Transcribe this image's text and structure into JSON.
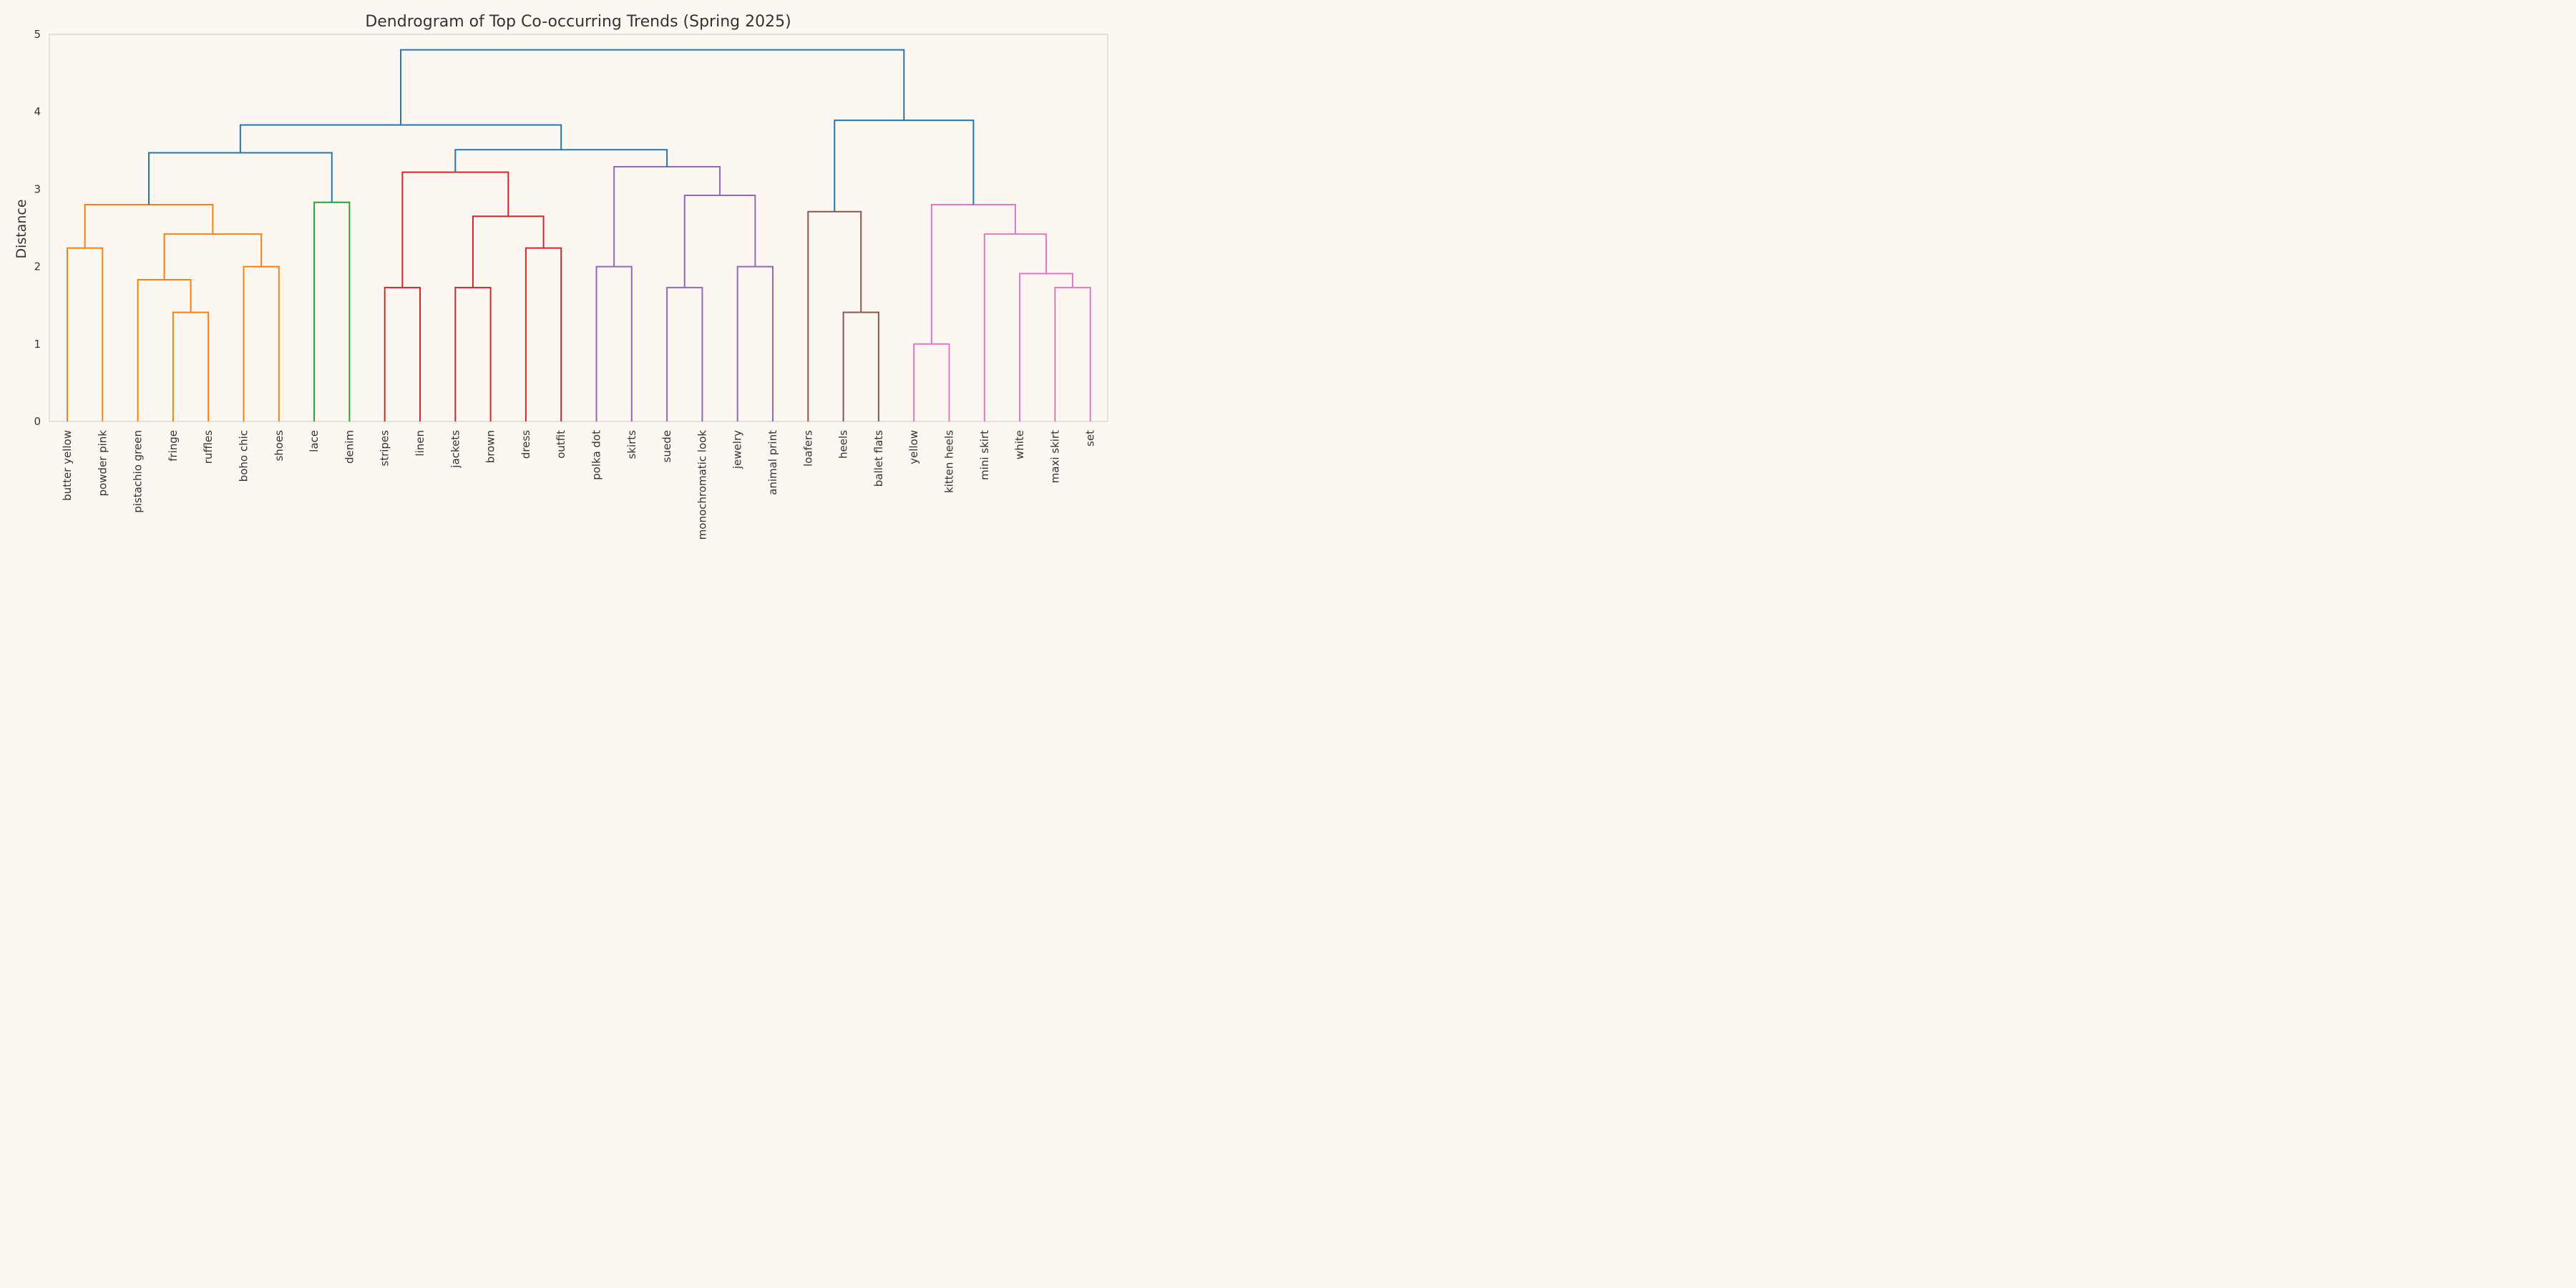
{
  "chart_data": {
    "type": "dendrogram",
    "title": "Dendrogram of Top Co-occurring Trends (Spring 2025)",
    "xlabel": "",
    "ylabel": "Distance",
    "ylim": [
      0,
      5
    ],
    "y_ticks": [
      0,
      1,
      2,
      3,
      4,
      5
    ],
    "grid": false,
    "leaves": [
      "butter yellow",
      "powder pink",
      "pistachio green",
      "fringe",
      "ruffles",
      "boho chic",
      "shoes",
      "lace",
      "denim",
      "stripes",
      "linen",
      "jackets",
      "brown",
      "dress",
      "outfit",
      "polka dot",
      "skirts",
      "suede",
      "monochromatic look",
      "jewelry",
      "animal print",
      "loafers",
      "heels",
      "ballet flats",
      "yellow",
      "kitten heels",
      "mini skirt",
      "white",
      "maxi skirt",
      "set"
    ],
    "colors": {
      "orange": "#ff7f0e",
      "green": "#2ca02c",
      "red": "#d62728",
      "purple": "#9467bd",
      "brown": "#8c564b",
      "pink": "#e377c2",
      "blue": "#1f77b4",
      "frame": "#cccccc",
      "text": "#333333",
      "background": "#fcf8f1"
    },
    "links": [
      {
        "left": "L0",
        "right": "L1",
        "height": 2.24,
        "color": "orange"
      },
      {
        "left": "L3",
        "right": "L4",
        "height": 1.41,
        "color": "orange"
      },
      {
        "left": "L2",
        "right": "M1",
        "height": 1.83,
        "color": "orange"
      },
      {
        "left": "L5",
        "right": "L6",
        "height": 2.0,
        "color": "orange"
      },
      {
        "left": "M2",
        "right": "M3",
        "height": 2.42,
        "color": "orange"
      },
      {
        "left": "M0",
        "right": "M4",
        "height": 2.8,
        "color": "orange"
      },
      {
        "left": "L7",
        "right": "L8",
        "height": 2.83,
        "color": "green"
      },
      {
        "left": "M5",
        "right": "M6",
        "height": 3.47,
        "color": "blue"
      },
      {
        "left": "L9",
        "right": "L10",
        "height": 1.73,
        "color": "red"
      },
      {
        "left": "L11",
        "right": "L12",
        "height": 1.73,
        "color": "red"
      },
      {
        "left": "L13",
        "right": "L14",
        "height": 2.24,
        "color": "red"
      },
      {
        "left": "M9",
        "right": "M10",
        "height": 2.65,
        "color": "red"
      },
      {
        "left": "M8",
        "right": "M11",
        "height": 3.22,
        "color": "red"
      },
      {
        "left": "L15",
        "right": "L16",
        "height": 2.0,
        "color": "purple"
      },
      {
        "left": "L17",
        "right": "L18",
        "height": 1.73,
        "color": "purple"
      },
      {
        "left": "L19",
        "right": "L20",
        "height": 2.0,
        "color": "purple"
      },
      {
        "left": "M14",
        "right": "M15",
        "height": 2.92,
        "color": "purple"
      },
      {
        "left": "M13",
        "right": "M16",
        "height": 3.29,
        "color": "purple"
      },
      {
        "left": "M12",
        "right": "M17",
        "height": 3.51,
        "color": "blue"
      },
      {
        "left": "M7",
        "right": "M18",
        "height": 3.83,
        "color": "blue"
      },
      {
        "left": "L22",
        "right": "L23",
        "height": 1.41,
        "color": "brown"
      },
      {
        "left": "L21",
        "right": "M20",
        "height": 2.71,
        "color": "brown"
      },
      {
        "left": "L24",
        "right": "L25",
        "height": 1.0,
        "color": "pink"
      },
      {
        "left": "L28",
        "right": "L29",
        "height": 1.73,
        "color": "pink"
      },
      {
        "left": "L27",
        "right": "M23",
        "height": 1.91,
        "color": "pink"
      },
      {
        "left": "L26",
        "right": "M24",
        "height": 2.42,
        "color": "pink"
      },
      {
        "left": "M22",
        "right": "M25",
        "height": 2.8,
        "color": "pink"
      },
      {
        "left": "M21",
        "right": "M26",
        "height": 3.89,
        "color": "blue"
      },
      {
        "left": "M19",
        "right": "M27",
        "height": 4.8,
        "color": "blue"
      }
    ]
  }
}
